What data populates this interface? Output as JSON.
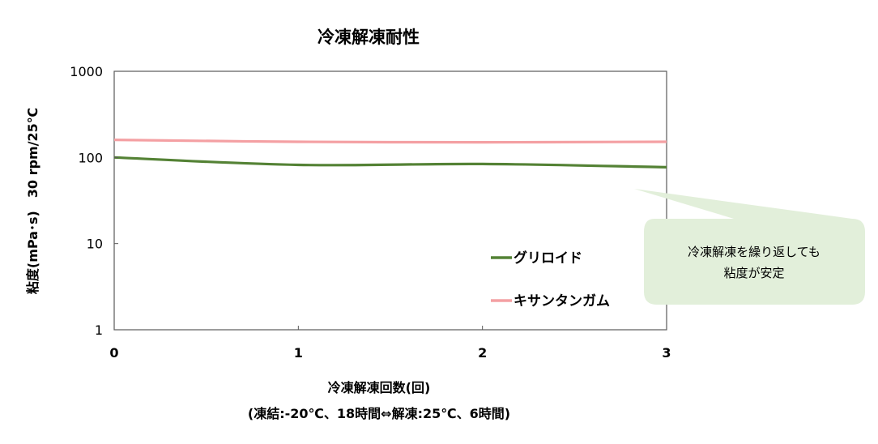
{
  "chart_data": {
    "type": "line",
    "title": "冷凍解凍耐性",
    "xlabel": "冷凍解凍回数(回)",
    "xlabel_sub": "(凍結:-20℃、18時間⇔解凍:25℃、6時間)",
    "ylabel": "粘度(mPa･s)　30 rpm/25℃",
    "x_ticks": [
      "0",
      "1",
      "2",
      "3"
    ],
    "y_ticks": [
      "1",
      "10",
      "100",
      "1000"
    ],
    "x": [
      0,
      1,
      2,
      3
    ],
    "xlim": [
      0,
      3
    ],
    "ylim": [
      1,
      1000
    ],
    "y_scale": "log",
    "grid": false,
    "legend_position": "center-right",
    "series": [
      {
        "name": "グリロイド",
        "color": "#548235",
        "values": [
          100,
          82,
          84,
          77
        ]
      },
      {
        "name": "キサンタンガム",
        "color": "#F4A0A3",
        "values": [
          160,
          152,
          150,
          152
        ]
      }
    ],
    "annotation": {
      "lines": [
        "冷凍解凍を繰り返しても",
        "粘度が安定"
      ],
      "fill": "#E2EFDA"
    }
  }
}
